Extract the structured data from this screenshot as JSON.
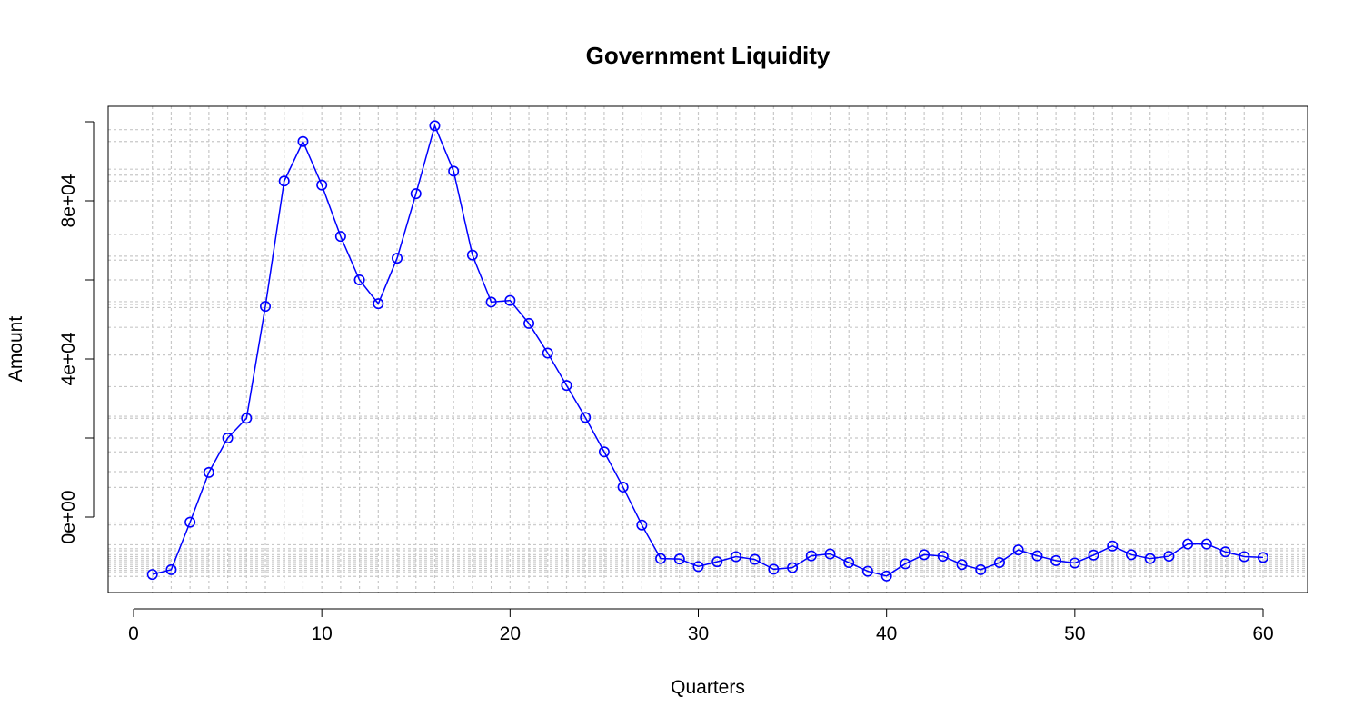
{
  "chart_data": {
    "type": "line",
    "title": "Government Liquidity",
    "xlabel": "Quarters",
    "ylabel": "Amount",
    "xlim": [
      1,
      60
    ],
    "ylim": [
      -18000,
      100000
    ],
    "x_ticks": [
      0,
      10,
      20,
      30,
      40,
      50,
      60
    ],
    "x_tick_labels": [
      "0",
      "10",
      "20",
      "30",
      "40",
      "50",
      "60"
    ],
    "y_ticks": [
      0,
      40000,
      80000
    ],
    "y_tick_labels": [
      "0e+00",
      "4e+04",
      "8e+04"
    ],
    "grid": true,
    "colors": {
      "series": "#0000ff",
      "grid": "#c8c8c8",
      "axis": "#000000"
    },
    "series": [
      {
        "marker": "open-circle",
        "x": [
          1,
          2,
          3,
          4,
          5,
          6,
          7,
          8,
          9,
          10,
          11,
          12,
          13,
          14,
          15,
          16,
          17,
          18,
          19,
          20,
          21,
          22,
          23,
          24,
          25,
          26,
          27,
          28,
          29,
          30,
          31,
          32,
          33,
          34,
          35,
          36,
          37,
          38,
          39,
          40,
          41,
          42,
          43,
          44,
          45,
          46,
          47,
          48,
          49,
          50,
          51,
          52,
          53,
          54,
          55,
          56,
          57,
          58,
          59,
          60
        ],
        "values": [
          -14500,
          -13300,
          -1300,
          11300,
          20000,
          25000,
          53300,
          85000,
          95000,
          84000,
          71000,
          60000,
          54000,
          65500,
          81800,
          99000,
          87500,
          66300,
          54400,
          54800,
          49000,
          41500,
          33300,
          25200,
          16500,
          7600,
          -2000,
          -10500,
          -10600,
          -12500,
          -11300,
          -10000,
          -10700,
          -13200,
          -12800,
          -9800,
          -9300,
          -11500,
          -13700,
          -14900,
          -11800,
          -9500,
          -9900,
          -12000,
          -13300,
          -11500,
          -8300,
          -9800,
          -11000,
          -11600,
          -9600,
          -7300,
          -9500,
          -10500,
          -9900,
          -6800,
          -6800,
          -8800,
          -10000,
          -10200
        ]
      }
    ],
    "dotted_h_gridlines": [
      98000,
      95000,
      88000,
      86500,
      85000,
      80000,
      71500,
      66000,
      65000,
      60000,
      54500,
      53800,
      53000,
      48000,
      41000,
      33000,
      25500,
      25000,
      20000,
      16500,
      11500,
      7500,
      -1500,
      -2000,
      -7000,
      -8000,
      -8500,
      -9500,
      -10000,
      -10500,
      -11000,
      -11500,
      -12000,
      -12500,
      -13000,
      -13500,
      -14000,
      -15000
    ]
  }
}
